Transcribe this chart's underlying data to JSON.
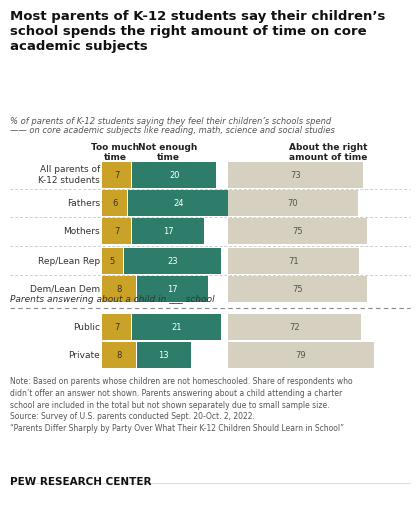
{
  "title": "Most parents of K-12 students say their children’s\nschool spends the right amount of time on core\nacademic subjects",
  "subtitle_line1": "% of parents of K-12 students saying they feel their children’s schools spend",
  "subtitle_line2": "—— on core academic subjects like reading, math, science and social studies",
  "categories": [
    "All parents of\nK-12 students",
    "Fathers",
    "Mothers",
    "Rep/Lean Rep",
    "Dem/Lean Dem",
    "Public",
    "Private"
  ],
  "too_much": [
    7,
    6,
    7,
    5,
    8,
    7,
    8
  ],
  "not_enough": [
    20,
    24,
    17,
    23,
    17,
    21,
    13
  ],
  "about_right": [
    73,
    70,
    75,
    71,
    75,
    72,
    79
  ],
  "color_too_much": "#C9A227",
  "color_not_enough": "#2E7D6B",
  "color_about_right": "#D5D0C0",
  "note": "Note: Based on parents whose children are not homeschooled. Share of respondents who\ndidn’t offer an answer not shown. Parents answering about a child attending a charter\nschool are included in the total but not shown separately due to small sample size.\nSource: Survey of U.S. parents conducted Sept. 20-Oct. 2, 2022.\n“Parents Differ Sharply by Party Over What Their K-12 Children Should Learn in School”",
  "footer": "PEW RESEARCH CENTER",
  "bg_color": "#FFFFFF"
}
